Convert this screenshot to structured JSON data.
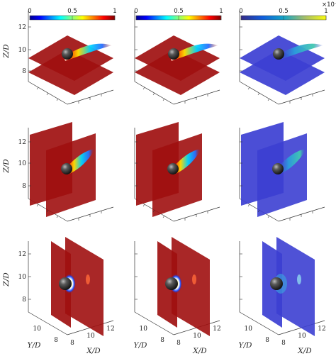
{
  "colorbars": [
    {
      "ticks": [
        "0",
        "0.5",
        "1"
      ],
      "multiplier": "",
      "colormap": "jet"
    },
    {
      "ticks": [
        "0",
        "0.5",
        "1"
      ],
      "multiplier": "",
      "colormap": "jet"
    },
    {
      "ticks": [
        "0",
        "0.5",
        "1"
      ],
      "multiplier": "×10⁻⁴",
      "colormap": "parula"
    }
  ],
  "axes": {
    "z_label": "Z/D",
    "y_label": "Y/D",
    "x_label": "X/D",
    "z_ticks": [
      "12",
      "10",
      "8"
    ],
    "y_ticks": [
      "10",
      "8"
    ],
    "x_ticks": [
      "8",
      "10",
      "12"
    ]
  },
  "colors": {
    "plane_red": "#a01010",
    "plane_blue": "#3c3fd2",
    "sphere": "#222222"
  },
  "rows": [
    {
      "orientation": "horizontal"
    },
    {
      "orientation": "vertical-x"
    },
    {
      "orientation": "vertical-y"
    }
  ]
}
